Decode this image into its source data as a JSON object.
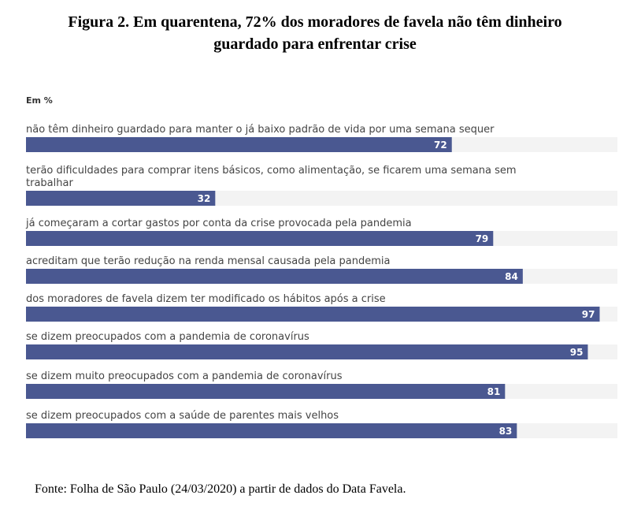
{
  "figure": {
    "title_line1": "Figura 2. Em quarentena, 72% dos moradores de favela não têm dinheiro",
    "title_line2": "guardado para enfrentar crise",
    "source": "Fonte: Folha de São Paulo (24/03/2020) a partir de dados do Data Favela."
  },
  "chart_data": {
    "type": "bar",
    "orientation": "horizontal",
    "unit_label": "Em %",
    "xlim": [
      0,
      100
    ],
    "grid": false,
    "bar_color": "#4a5891",
    "track_color": "#f3f3f3",
    "categories": [
      "não têm dinheiro guardado para manter o já baixo padrão de vida por uma semana sequer",
      "terão dificuldades para comprar itens básicos, como alimentação, se ficarem uma semana sem trabalhar",
      "já começaram a cortar gastos por conta da crise provocada pela pandemia",
      "acreditam que terão redução na renda mensal causada pela pandemia",
      "dos moradores de favela dizem ter modificado os hábitos após a crise",
      "se dizem preocupados com a pandemia de coronavírus",
      "se dizem muito preocupados com a pandemia de coronavírus",
      "se dizem preocupados com a saúde de parentes mais velhos"
    ],
    "values": [
      72,
      32,
      79,
      84,
      97,
      95,
      81,
      83
    ]
  }
}
